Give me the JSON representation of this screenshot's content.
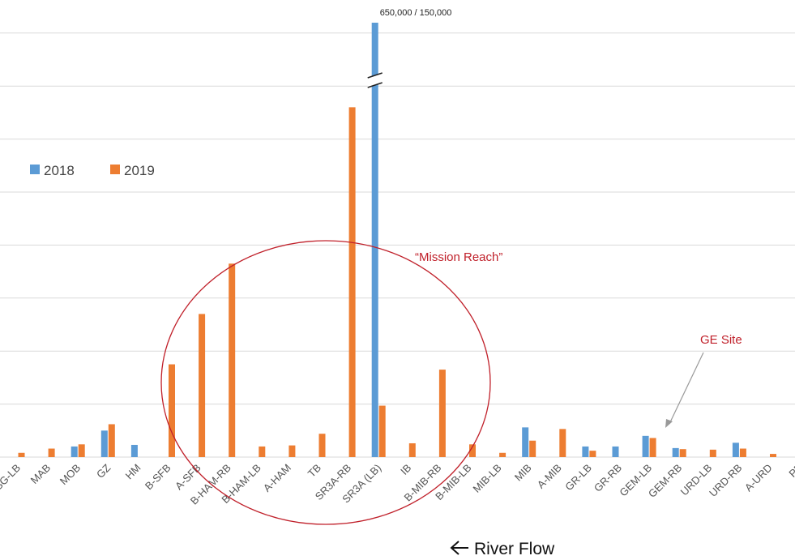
{
  "chart_data": {
    "type": "bar",
    "title": "",
    "xlabel": "",
    "ylabel": "",
    "ylim": [
      0,
      8250
    ],
    "grid": true,
    "legend_position": "left",
    "categories": [
      "FSG-LB",
      "MAB",
      "MOB",
      "GZ",
      "HM",
      "B-SFB",
      "A-SFB",
      "B-HAM-RB",
      "B-HAM-LB",
      "A-HAM",
      "TB",
      "SR3A-RB",
      "SR3A (LB)",
      "IB",
      "B-MIB-RB",
      "B-MIB-LB",
      "MIB-LB",
      "MIB",
      "A-MIB",
      "GR-LB",
      "GR-RB",
      "GEM-LB",
      "GEM-RB",
      "URD-LB",
      "URD-RB",
      "A-URD",
      "PF"
    ],
    "series": [
      {
        "name": "2018",
        "color": "#5b9bd5",
        "values": [
          null,
          null,
          200,
          500,
          230,
          null,
          null,
          null,
          null,
          null,
          null,
          null,
          8250,
          null,
          null,
          null,
          null,
          560,
          null,
          200,
          200,
          400,
          170,
          null,
          270,
          null,
          null
        ]
      },
      {
        "name": "2019",
        "color": "#ed7d31",
        "values": [
          80,
          160,
          240,
          620,
          null,
          1750,
          2700,
          3650,
          200,
          220,
          440,
          6600,
          970,
          260,
          1650,
          240,
          80,
          310,
          530,
          120,
          null,
          360,
          150,
          140,
          160,
          60,
          null
        ]
      }
    ],
    "annotations": {
      "break_value_label": "650,000 / 150,000",
      "region_label": "“Mission Reach”",
      "site_label": "GE Site",
      "flow_label": "River Flow",
      "flow_arrow_icon": "left-arrow-icon"
    }
  }
}
